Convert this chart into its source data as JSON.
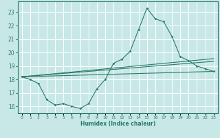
{
  "xlabel": "Humidex (Indice chaleur)",
  "background_color": "#c8e8e8",
  "grid_color": "#ffffff",
  "line_color": "#2a7a6a",
  "xlim": [
    -0.5,
    23.5
  ],
  "ylim": [
    15.5,
    23.8
  ],
  "yticks": [
    16,
    17,
    18,
    19,
    20,
    21,
    22,
    23
  ],
  "xticks": [
    0,
    1,
    2,
    3,
    4,
    5,
    6,
    7,
    8,
    9,
    10,
    11,
    12,
    13,
    14,
    15,
    16,
    17,
    18,
    19,
    20,
    21,
    22,
    23
  ],
  "line1_x": [
    0,
    1,
    2,
    3,
    4,
    5,
    6,
    7,
    8,
    9,
    10,
    11,
    12,
    13,
    14,
    15,
    16,
    17,
    18,
    19,
    20,
    21,
    22,
    23
  ],
  "line1_y": [
    18.2,
    18.0,
    17.7,
    16.5,
    16.1,
    16.2,
    16.0,
    15.85,
    16.2,
    17.3,
    18.0,
    19.2,
    19.5,
    20.1,
    21.7,
    23.3,
    22.5,
    22.3,
    21.2,
    19.7,
    19.4,
    19.0,
    18.8,
    18.6
  ],
  "line2_x": [
    0,
    23
  ],
  "line2_y": [
    18.2,
    19.35
  ],
  "line3_x": [
    0,
    23
  ],
  "line3_y": [
    18.2,
    19.55
  ],
  "line4_x": [
    0,
    23
  ],
  "line4_y": [
    18.2,
    18.6
  ]
}
